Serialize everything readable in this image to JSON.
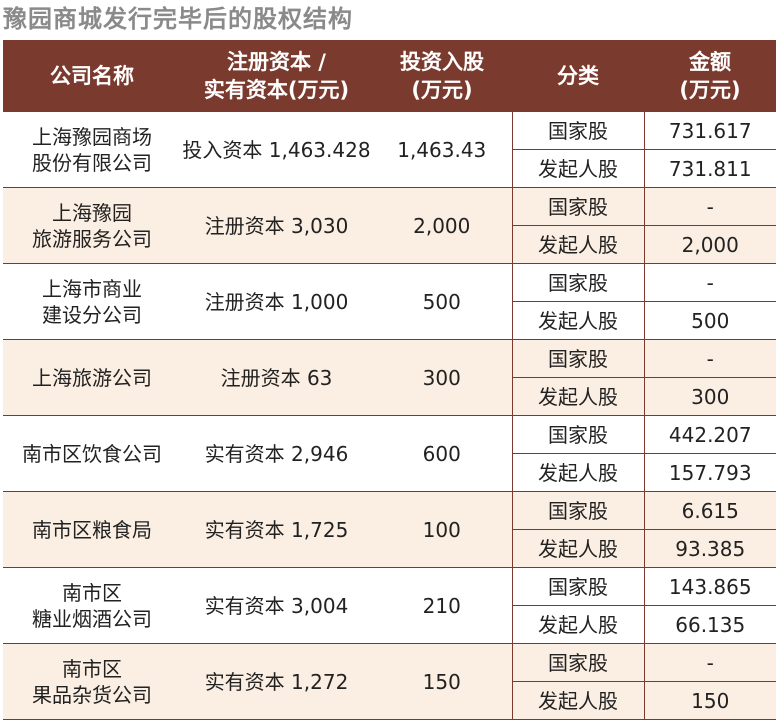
{
  "title": "豫园商城发行完毕后的股权结构",
  "headers": {
    "company": "公司名称",
    "capital_line1": "注册资本 /",
    "capital_line2": "实有资本(万元)",
    "invest_line1": "投资入股",
    "invest_line2": "(万元)",
    "category": "分类",
    "amount_line1": "金额",
    "amount_line2": "(万元)"
  },
  "rows": [
    {
      "name1": "上海豫园商场",
      "name2": "股份有限公司",
      "capital": "投入资本 1,463.428",
      "invest": "1,463.43",
      "sub": [
        {
          "cat": "国家股",
          "amt": "731.617"
        },
        {
          "cat": "发起人股",
          "amt": "731.811"
        }
      ]
    },
    {
      "name1": "上海豫园",
      "name2": "旅游服务公司",
      "capital": "注册资本 3,030",
      "invest": "2,000",
      "sub": [
        {
          "cat": "国家股",
          "amt": "-"
        },
        {
          "cat": "发起人股",
          "amt": "2,000"
        }
      ]
    },
    {
      "name1": "上海市商业",
      "name2": "建设分公司",
      "capital": "注册资本 1,000",
      "invest": "500",
      "sub": [
        {
          "cat": "国家股",
          "amt": "-"
        },
        {
          "cat": "发起人股",
          "amt": "500"
        }
      ]
    },
    {
      "name1": "上海旅游公司",
      "name2": "",
      "capital": "注册资本 63",
      "invest": "300",
      "sub": [
        {
          "cat": "国家股",
          "amt": "-"
        },
        {
          "cat": "发起人股",
          "amt": "300"
        }
      ]
    },
    {
      "name1": "南市区饮食公司",
      "name2": "",
      "capital": "实有资本 2,946",
      "invest": "600",
      "sub": [
        {
          "cat": "国家股",
          "amt": "442.207"
        },
        {
          "cat": "发起人股",
          "amt": "157.793"
        }
      ]
    },
    {
      "name1": "南市区粮食局",
      "name2": "",
      "capital": "实有资本 1,725",
      "invest": "100",
      "sub": [
        {
          "cat": "国家股",
          "amt": "6.615"
        },
        {
          "cat": "发起人股",
          "amt": "93.385"
        }
      ]
    },
    {
      "name1": "南市区",
      "name2": "糖业烟酒公司",
      "capital": "实有资本 3,004",
      "invest": "210",
      "sub": [
        {
          "cat": "国家股",
          "amt": "143.865"
        },
        {
          "cat": "发起人股",
          "amt": "66.135"
        }
      ]
    },
    {
      "name1": "南市区",
      "name2": "果品杂货公司",
      "capital": "实有资本 1,272",
      "invest": "150",
      "sub": [
        {
          "cat": "国家股",
          "amt": "-"
        },
        {
          "cat": "发起人股",
          "amt": "150"
        }
      ]
    }
  ]
}
